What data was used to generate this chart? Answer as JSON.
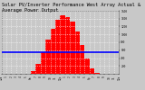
{
  "title": "Solar PV/Inverter Performance West Array Actual & Average Power Output",
  "title_fontsize": 3.8,
  "bg_color": "#c8c8c8",
  "plot_bg_color": "#c8c8c8",
  "bar_color": "#ff0000",
  "avg_line_color": "#0000ff",
  "avg_line_value": 550,
  "ylim": [
    0,
    1600
  ],
  "yticks": [
    200,
    400,
    600,
    800,
    1000,
    1200,
    1400,
    1600
  ],
  "x_hours": [
    0,
    1,
    2,
    3,
    4,
    5,
    6,
    7,
    8,
    9,
    10,
    11,
    12,
    13,
    14,
    15,
    16,
    17,
    18,
    19,
    20,
    21,
    22,
    23,
    24
  ],
  "x_labels": [
    "12a",
    "1",
    "2",
    "3",
    "4",
    "5",
    "6a",
    "7",
    "8",
    "9",
    "10",
    "11",
    "12p",
    "1",
    "2",
    "3",
    "4",
    "5",
    "6p",
    "7",
    "8",
    "9",
    "10",
    "11",
    "12a"
  ],
  "power_values": [
    0,
    0,
    0,
    0,
    0,
    5,
    60,
    250,
    550,
    870,
    1150,
    1380,
    1480,
    1450,
    1320,
    1080,
    740,
    390,
    140,
    25,
    3,
    0,
    0,
    0,
    0
  ]
}
